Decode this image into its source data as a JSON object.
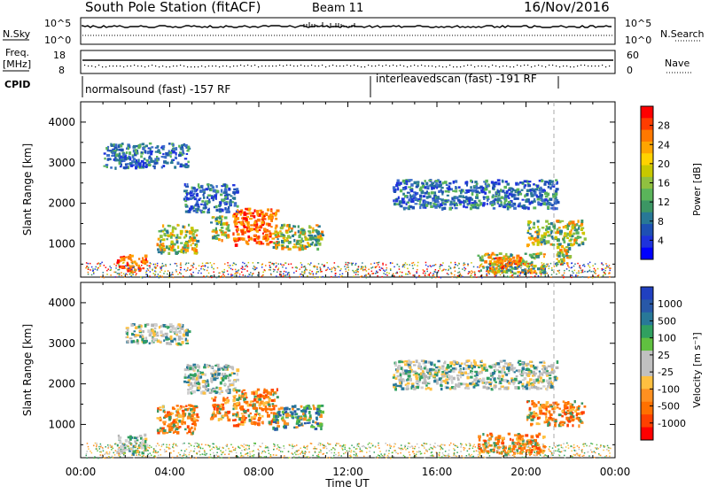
{
  "header": {
    "station": "South Pole Station (fitACF)",
    "beam": "Beam 11",
    "date": "16/Nov/2016"
  },
  "params": {
    "nsky_label": "N.Sky",
    "nsky_ticks": [
      "10^5",
      "10^0"
    ],
    "nsearch_label": "N.Search",
    "nsearch_ticks": [
      "10^5",
      "10^0"
    ],
    "freq_label": "Freq.",
    "freq_unit": "[MHz]",
    "freq_ticks": [
      "18",
      "8"
    ],
    "nave_label": "Nave",
    "nave_ticks": [
      "60",
      "0"
    ],
    "cpid_label": "CPID",
    "cpid_segments": [
      {
        "label": "normalsound (fast) -157 RF"
      },
      {
        "label": "interleavedscan (fast) -191 RF"
      }
    ]
  },
  "chart_data": [
    {
      "type": "heatmap",
      "panel": "power",
      "ylabel": "Slant Range [km]",
      "xlabel": "Time UT",
      "xticks": [
        "00:00",
        "04:00",
        "08:00",
        "12:00",
        "16:00",
        "20:00",
        "00:00"
      ],
      "xlim_hours": [
        0,
        24
      ],
      "ylim": [
        180,
        4500
      ],
      "yticks": [
        1000,
        2000,
        3000,
        4000
      ],
      "colorbar": {
        "label": "Power [dB]",
        "ticks": [
          "28",
          "24",
          "20",
          "16",
          "12",
          "8",
          "4"
        ],
        "colors": [
          "#ff0000",
          "#ff3c00",
          "#ff7800",
          "#ffa500",
          "#ffd200",
          "#c8c800",
          "#90c040",
          "#5ab45a",
          "#3c9664",
          "#287896",
          "#1e50b4",
          "#1e32dc",
          "#0000ff"
        ]
      },
      "scatter_regions": [
        {
          "t0": 1.6,
          "t1": 2.9,
          "r0": 450,
          "r1": 760,
          "value_class": "high"
        },
        {
          "t0": 2.0,
          "t1": 2.8,
          "r0": 300,
          "r1": 450,
          "value_class": "high"
        },
        {
          "t0": 3.4,
          "t1": 5.2,
          "r0": 800,
          "r1": 1500,
          "value_class": "mid"
        },
        {
          "t0": 4.6,
          "t1": 7.0,
          "r0": 1800,
          "r1": 2500,
          "value_class": "low"
        },
        {
          "t0": 5.8,
          "t1": 6.6,
          "r0": 1100,
          "r1": 1700,
          "value_class": "mid"
        },
        {
          "t0": 6.8,
          "t1": 8.8,
          "r0": 1000,
          "r1": 1900,
          "value_class": "high"
        },
        {
          "t0": 8.6,
          "t1": 10.8,
          "r0": 900,
          "r1": 1500,
          "value_class": "mid"
        },
        {
          "t0": 1.0,
          "t1": 4.8,
          "r0": 2900,
          "r1": 3500,
          "value_class": "low"
        },
        {
          "t0": 14.0,
          "t1": 21.4,
          "r0": 1900,
          "r1": 2600,
          "value_class": "low"
        },
        {
          "t0": 17.8,
          "t1": 20.8,
          "r0": 300,
          "r1": 800,
          "value_class": "mid"
        },
        {
          "t0": 18.6,
          "t1": 19.8,
          "r0": 400,
          "r1": 700,
          "value_class": "high"
        },
        {
          "t0": 20.0,
          "t1": 22.6,
          "r0": 1000,
          "r1": 1600,
          "value_class": "mid"
        },
        {
          "t0": 21.3,
          "t1": 22.0,
          "r0": 500,
          "r1": 1000,
          "value_class": "mid"
        },
        {
          "t0": 0.2,
          "t1": 23.8,
          "r0": 180,
          "r1": 560,
          "value_class": "noise"
        }
      ]
    },
    {
      "type": "heatmap",
      "panel": "velocity",
      "ylabel": "Slant Range [km]",
      "xlabel": "Time UT",
      "xticks": [
        "00:00",
        "04:00",
        "08:00",
        "12:00",
        "16:00",
        "20:00",
        "00:00"
      ],
      "xlim_hours": [
        0,
        24
      ],
      "ylim": [
        180,
        4500
      ],
      "yticks": [
        1000,
        2000,
        3000,
        4000
      ],
      "colorbar": {
        "label": "Velocity [m s⁻¹]",
        "ticks": [
          "1000",
          "500",
          "100",
          "25",
          "-25",
          "-100",
          "-500",
          "-1000"
        ],
        "colors": [
          "#2040c0",
          "#2858a8",
          "#287898",
          "#30a060",
          "#60c040",
          "#c0c0c0",
          "#c0c0c0",
          "#ffc040",
          "#ff9020",
          "#ff7000",
          "#ff4000",
          "#ff0000"
        ]
      },
      "scatter_regions": [
        {
          "t0": 1.6,
          "t1": 2.9,
          "r0": 300,
          "r1": 800,
          "value_class": "zero"
        },
        {
          "t0": 3.4,
          "t1": 5.2,
          "r0": 800,
          "r1": 1500,
          "value_class": "neg"
        },
        {
          "t0": 4.6,
          "t1": 7.0,
          "r0": 1800,
          "r1": 2500,
          "value_class": "zero"
        },
        {
          "t0": 5.8,
          "t1": 6.6,
          "r0": 1100,
          "r1": 1700,
          "value_class": "neg"
        },
        {
          "t0": 6.8,
          "t1": 8.8,
          "r0": 1000,
          "r1": 1900,
          "value_class": "neg"
        },
        {
          "t0": 8.6,
          "t1": 10.8,
          "r0": 900,
          "r1": 1500,
          "value_class": "pos"
        },
        {
          "t0": 2.0,
          "t1": 4.8,
          "r0": 3000,
          "r1": 3500,
          "value_class": "zero"
        },
        {
          "t0": 14.0,
          "t1": 21.4,
          "r0": 1900,
          "r1": 2600,
          "value_class": "zero"
        },
        {
          "t0": 17.8,
          "t1": 20.8,
          "r0": 300,
          "r1": 800,
          "value_class": "neg"
        },
        {
          "t0": 20.0,
          "t1": 22.6,
          "r0": 1000,
          "r1": 1600,
          "value_class": "neg"
        },
        {
          "t0": 0.2,
          "t1": 23.8,
          "r0": 180,
          "r1": 560,
          "value_class": "noise"
        }
      ]
    }
  ]
}
